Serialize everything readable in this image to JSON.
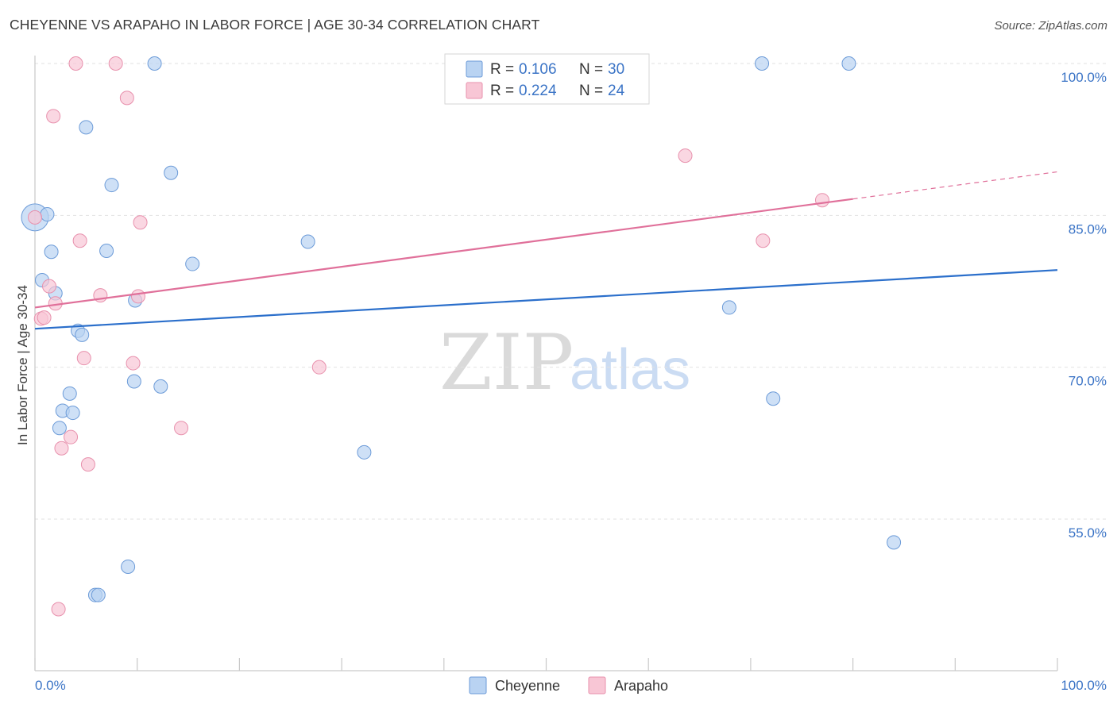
{
  "header": {
    "title": "CHEYENNE VS ARAPAHO IN LABOR FORCE | AGE 30-34 CORRELATION CHART",
    "source": "Source: ZipAtlas.com"
  },
  "watermark": {
    "zip": "ZIP",
    "atlas": "atlas"
  },
  "legend": {
    "r_label": "R =",
    "n_label": "N =",
    "rows": [
      {
        "r": "0.106",
        "n": "30"
      },
      {
        "r": "0.224",
        "n": "24"
      }
    ]
  },
  "bottom_legend": [
    {
      "label": "Cheyenne"
    },
    {
      "label": "Arapaho"
    }
  ],
  "colors": {
    "cheyenne_fill": "#b9d3f2",
    "cheyenne_stroke": "#6c9bd8",
    "cheyenne_line": "#2b6fcb",
    "arapaho_fill": "#f8c6d5",
    "arapaho_stroke": "#e891ad",
    "arapaho_line": "#e0709a",
    "tick_text": "#3b74c6",
    "grid": "#e2e2e2"
  },
  "chart_data": {
    "type": "scatter",
    "title": "CHEYENNE VS ARAPAHO IN LABOR FORCE | AGE 30-34 CORRELATION CHART",
    "xlabel": "",
    "ylabel": "In Labor Force | Age 30-34",
    "xlim": [
      0,
      100
    ],
    "ylim": [
      40.5,
      101.5
    ],
    "x_tick_labels": [
      "0.0%",
      "100.0%"
    ],
    "y_ticks": [
      {
        "value": 100,
        "label": "100.0%"
      },
      {
        "value": 85,
        "label": "85.0%"
      },
      {
        "value": 70,
        "label": "70.0%"
      },
      {
        "value": 55,
        "label": "55.0%"
      }
    ],
    "grid": true,
    "series": [
      {
        "name": "Cheyenne",
        "r": 0.106,
        "n": 30,
        "trend": {
          "x": [
            0,
            100
          ],
          "y": [
            73.8,
            79.6
          ]
        },
        "points": [
          {
            "x": 0.0,
            "y": 84.8,
            "big": true
          },
          {
            "x": 1.2,
            "y": 85.1
          },
          {
            "x": 1.6,
            "y": 81.4
          },
          {
            "x": 0.7,
            "y": 78.6
          },
          {
            "x": 2.0,
            "y": 77.3
          },
          {
            "x": 4.2,
            "y": 73.6
          },
          {
            "x": 4.6,
            "y": 73.2
          },
          {
            "x": 3.4,
            "y": 67.4
          },
          {
            "x": 2.7,
            "y": 65.7
          },
          {
            "x": 3.7,
            "y": 65.5
          },
          {
            "x": 2.4,
            "y": 64.0
          },
          {
            "x": 5.0,
            "y": 93.7
          },
          {
            "x": 7.5,
            "y": 88.0
          },
          {
            "x": 7.0,
            "y": 81.5
          },
          {
            "x": 11.7,
            "y": 100.0
          },
          {
            "x": 13.3,
            "y": 89.2
          },
          {
            "x": 15.4,
            "y": 80.2
          },
          {
            "x": 9.8,
            "y": 76.6
          },
          {
            "x": 9.7,
            "y": 68.6
          },
          {
            "x": 12.3,
            "y": 68.1
          },
          {
            "x": 9.1,
            "y": 50.3
          },
          {
            "x": 5.9,
            "y": 47.5
          },
          {
            "x": 6.2,
            "y": 47.5
          },
          {
            "x": 26.7,
            "y": 82.4
          },
          {
            "x": 32.2,
            "y": 61.6
          },
          {
            "x": 67.9,
            "y": 75.9
          },
          {
            "x": 71.1,
            "y": 100.0
          },
          {
            "x": 72.2,
            "y": 66.9
          },
          {
            "x": 79.6,
            "y": 100.0
          },
          {
            "x": 84.0,
            "y": 52.7
          }
        ]
      },
      {
        "name": "Arapaho",
        "r": 0.224,
        "n": 24,
        "trend": {
          "x": [
            0,
            100
          ],
          "y": [
            75.9,
            89.3
          ],
          "solid_until": 80
        },
        "points": [
          {
            "x": 0.0,
            "y": 84.8
          },
          {
            "x": 0.6,
            "y": 74.8
          },
          {
            "x": 0.9,
            "y": 74.9
          },
          {
            "x": 1.4,
            "y": 78.0
          },
          {
            "x": 2.0,
            "y": 76.3
          },
          {
            "x": 1.8,
            "y": 94.8
          },
          {
            "x": 4.0,
            "y": 100.0
          },
          {
            "x": 4.4,
            "y": 82.5
          },
          {
            "x": 4.8,
            "y": 70.9
          },
          {
            "x": 2.6,
            "y": 62.0
          },
          {
            "x": 3.5,
            "y": 63.1
          },
          {
            "x": 5.2,
            "y": 60.4
          },
          {
            "x": 2.3,
            "y": 46.1
          },
          {
            "x": 6.4,
            "y": 77.1
          },
          {
            "x": 7.9,
            "y": 100.0
          },
          {
            "x": 9.0,
            "y": 96.6
          },
          {
            "x": 10.3,
            "y": 84.3
          },
          {
            "x": 10.1,
            "y": 77.0
          },
          {
            "x": 9.6,
            "y": 70.4
          },
          {
            "x": 14.3,
            "y": 64.0
          },
          {
            "x": 27.8,
            "y": 70.0
          },
          {
            "x": 63.6,
            "y": 90.9
          },
          {
            "x": 71.2,
            "y": 82.5
          },
          {
            "x": 77.0,
            "y": 86.5
          }
        ]
      }
    ]
  }
}
